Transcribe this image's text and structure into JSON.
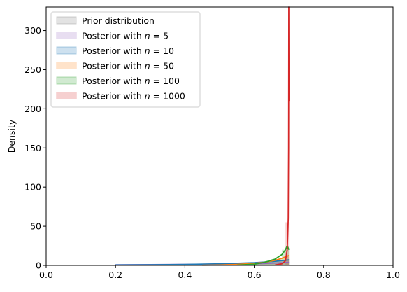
{
  "chart_data": {
    "type": "area",
    "title": "",
    "xlabel": "",
    "ylabel": "Density",
    "xlim": [
      0.0,
      1.0
    ],
    "ylim": [
      0,
      330
    ],
    "xticks": [
      "0.0",
      "0.2",
      "0.4",
      "0.6",
      "0.8",
      "1.0"
    ],
    "yticks": [
      "0",
      "50",
      "100",
      "150",
      "200",
      "250",
      "300"
    ],
    "grid": false,
    "legend_position": "top-left",
    "legend_prefix": "Posterior with ",
    "series": [
      {
        "name": "Prior distribution",
        "color": "#7f7f7f",
        "x": [
          0.2,
          0.3,
          0.4,
          0.5,
          0.6,
          0.65,
          0.69,
          0.7
        ],
        "y": [
          0.6,
          0.6,
          0.6,
          0.6,
          0.6,
          0.6,
          0.6,
          0.6
        ],
        "hist": {
          "bins": [
            0.2,
            0.3,
            0.4,
            0.5,
            0.6,
            0.65,
            0.7
          ],
          "heights": [
            0.6,
            0.6,
            0.6,
            0.6,
            0.6,
            0.6
          ]
        }
      },
      {
        "name": "Posterior with $n = 5$",
        "label_n": "5",
        "color": "#9467bd",
        "x": [
          0.2,
          0.3,
          0.4,
          0.5,
          0.6,
          0.65,
          0.68,
          0.7
        ],
        "y": [
          0.8,
          1.0,
          1.2,
          1.6,
          2.2,
          2.8,
          3.4,
          4.0
        ],
        "hist": {
          "bins": [
            0.2,
            0.3,
            0.4,
            0.5,
            0.6,
            0.65,
            0.7
          ],
          "heights": [
            0.9,
            1.1,
            1.4,
            1.9,
            2.5,
            3.2
          ]
        }
      },
      {
        "name": "Posterior with $n = 10$",
        "label_n": "10",
        "color": "#1f77b4",
        "x": [
          0.2,
          0.3,
          0.4,
          0.5,
          0.6,
          0.65,
          0.68,
          0.7
        ],
        "y": [
          0.5,
          0.8,
          1.2,
          2.0,
          3.5,
          4.8,
          6.0,
          7.0
        ],
        "hist": {
          "bins": [
            0.2,
            0.3,
            0.4,
            0.5,
            0.6,
            0.65,
            0.7
          ],
          "heights": [
            0.6,
            1.0,
            1.6,
            2.6,
            4.1,
            6.2
          ]
        }
      },
      {
        "name": "Posterior with $n = 50$",
        "label_n": "50",
        "color": "#ff7f0e",
        "x": [
          0.45,
          0.5,
          0.55,
          0.6,
          0.63,
          0.66,
          0.68,
          0.69,
          0.7
        ],
        "y": [
          0.2,
          0.5,
          1.2,
          2.5,
          4.0,
          6.5,
          9.0,
          11.0,
          12.5
        ],
        "hist": {
          "bins": [
            0.5,
            0.6,
            0.65,
            0.68,
            0.7
          ],
          "heights": [
            0.8,
            3.0,
            6.0,
            11.0
          ]
        }
      },
      {
        "name": "Posterior with $n = 100$",
        "label_n": "100",
        "color": "#2ca02c",
        "x": [
          0.55,
          0.6,
          0.63,
          0.66,
          0.68,
          0.69,
          0.695,
          0.7
        ],
        "y": [
          0.3,
          1.5,
          4.0,
          8.0,
          14.0,
          20.0,
          25.0,
          20.0
        ],
        "hist": {
          "bins": [
            0.6,
            0.65,
            0.68,
            0.7
          ],
          "heights": [
            2.5,
            8.0,
            20.0
          ]
        }
      },
      {
        "name": "Posterior with $n = 1000$",
        "label_n": "1000",
        "color": "#d62728",
        "x": [
          0.66,
          0.68,
          0.69,
          0.695,
          0.698,
          0.699,
          0.6995,
          0.7
        ],
        "y": [
          0.5,
          2.0,
          6.0,
          20.0,
          60.0,
          150.0,
          330.0,
          210.0
        ],
        "hist": {
          "bins": [
            0.69,
            0.7
          ],
          "heights": [
            55.0
          ]
        }
      }
    ]
  }
}
